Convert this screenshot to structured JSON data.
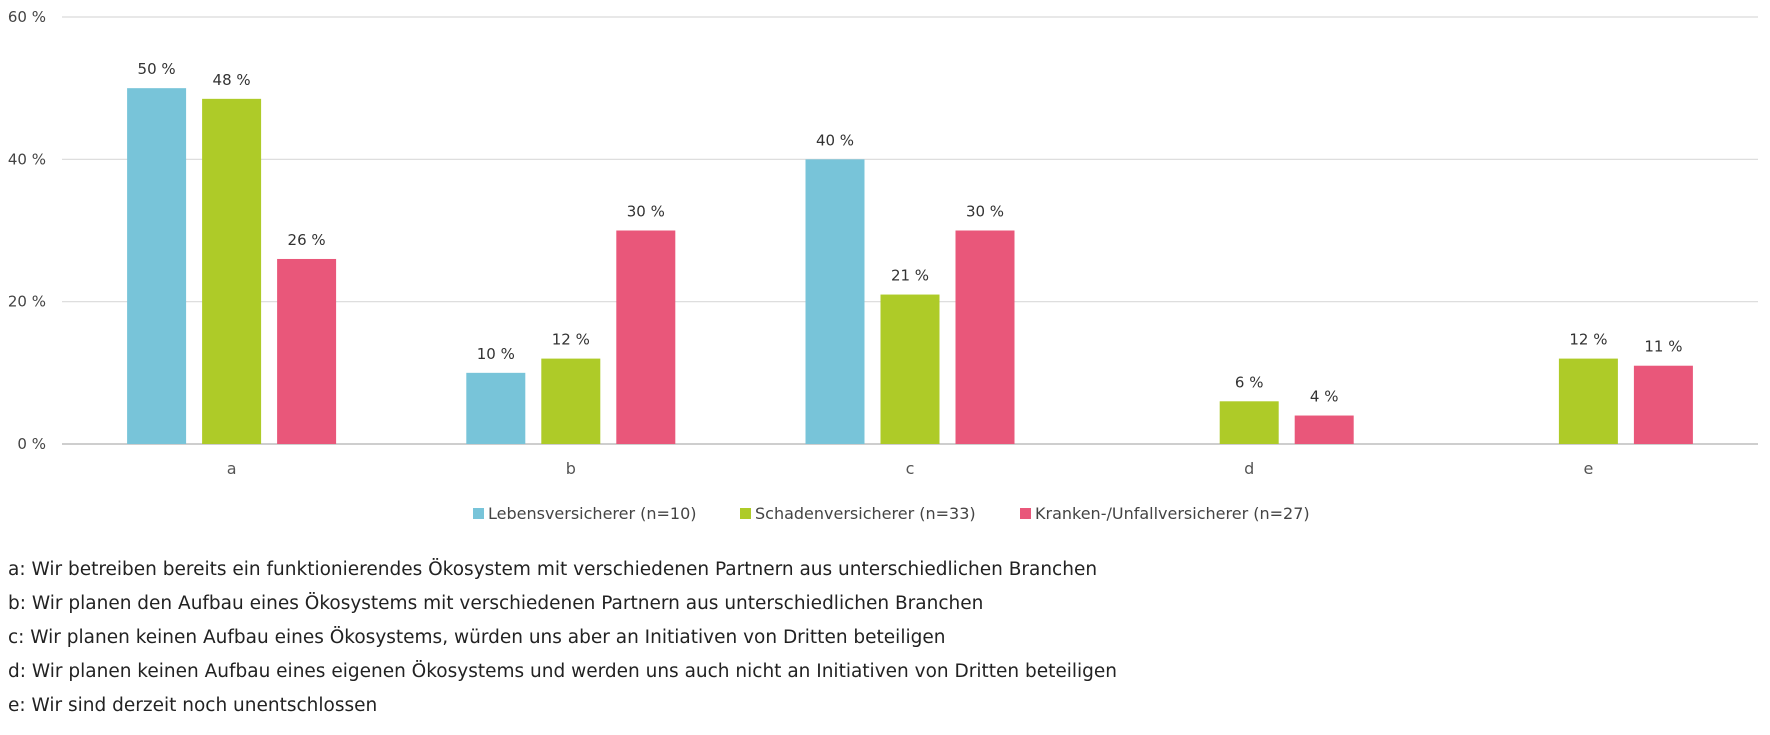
{
  "chart_data": {
    "type": "bar",
    "categories": [
      "a",
      "b",
      "c",
      "d",
      "e"
    ],
    "series": [
      {
        "name": "Lebensversicherer (n=10)",
        "color": "#78c4d9",
        "values": [
          50,
          10,
          40,
          null,
          null
        ],
        "labels": [
          "50 %",
          "10 %",
          "40 %",
          "",
          ""
        ]
      },
      {
        "name": "Schadenversicherer (n=33)",
        "color": "#aecb28",
        "values": [
          48.5,
          12,
          21,
          6,
          12
        ],
        "labels": [
          "48 %",
          "12 %",
          "21 %",
          "6 %",
          "12 %"
        ]
      },
      {
        "name": "Kranken-/Unfallversicherer (n=27)",
        "color": "#e9577a",
        "values": [
          26,
          30,
          30,
          4,
          11
        ],
        "labels": [
          "26 %",
          "30 %",
          "30 %",
          "4 %",
          "11 %"
        ]
      }
    ],
    "ylim": [
      0,
      60
    ],
    "yticks": [
      0,
      20,
      40,
      60
    ],
    "ytick_labels": [
      "0 %",
      "20 %",
      "40 %",
      "60 %"
    ],
    "grid": true,
    "legend_position": "bottom-center",
    "title": "",
    "xlabel": "",
    "ylabel": ""
  },
  "notes": [
    "a: Wir betreiben bereits ein funktionierendes Ökosystem mit verschiedenen Partnern aus unterschiedlichen Branchen",
    "b: Wir planen den Aufbau eines Ökosystems mit verschiedenen Partnern aus unterschiedlichen Branchen",
    "c: Wir planen keinen Aufbau eines Ökosystems, würden uns aber an Initiativen von Dritten beteiligen",
    "d: Wir planen keinen Aufbau eines eigenen Ökosystems und werden uns auch nicht an Initiativen von Dritten beteiligen",
    "e: Wir sind derzeit noch unentschlossen"
  ]
}
